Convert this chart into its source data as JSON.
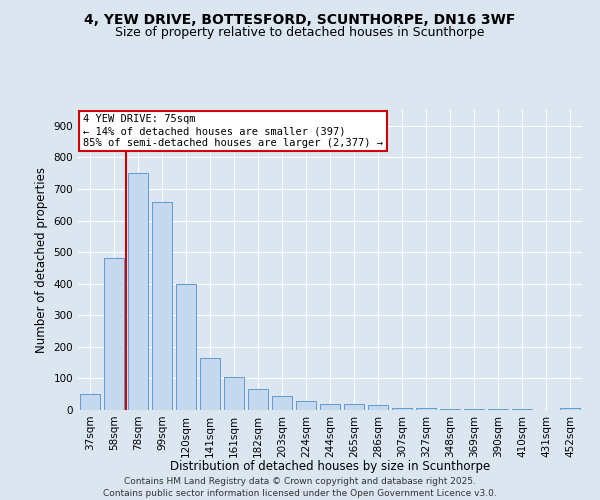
{
  "title1": "4, YEW DRIVE, BOTTESFORD, SCUNTHORPE, DN16 3WF",
  "title2": "Size of property relative to detached houses in Scunthorpe",
  "xlabel": "Distribution of detached houses by size in Scunthorpe",
  "ylabel": "Number of detached properties",
  "footer1": "Contains HM Land Registry data © Crown copyright and database right 2025.",
  "footer2": "Contains public sector information licensed under the Open Government Licence v3.0.",
  "property_label": "4 YEW DRIVE: 75sqm",
  "annotation_line1": "← 14% of detached houses are smaller (397)",
  "annotation_line2": "85% of semi-detached houses are larger (2,377) →",
  "bar_color": "#c5d8ed",
  "bar_edge_color": "#5b9bd5",
  "vline_color": "#cc0000",
  "annotation_box_edge_color": "#cc0000",
  "background_color": "#dce6f1",
  "plot_bg_color": "#dce6f1",
  "categories": [
    "37sqm",
    "58sqm",
    "78sqm",
    "99sqm",
    "120sqm",
    "141sqm",
    "161sqm",
    "182sqm",
    "203sqm",
    "224sqm",
    "244sqm",
    "265sqm",
    "286sqm",
    "307sqm",
    "327sqm",
    "348sqm",
    "369sqm",
    "390sqm",
    "410sqm",
    "431sqm",
    "452sqm"
  ],
  "values": [
    50,
    480,
    750,
    660,
    400,
    165,
    105,
    65,
    45,
    30,
    20,
    18,
    15,
    5,
    5,
    3,
    3,
    2,
    2,
    1,
    5
  ],
  "ylim": [
    0,
    950
  ],
  "yticks": [
    0,
    100,
    200,
    300,
    400,
    500,
    600,
    700,
    800,
    900
  ],
  "title1_fontsize": 10,
  "title2_fontsize": 9,
  "xlabel_fontsize": 8.5,
  "ylabel_fontsize": 8.5,
  "tick_fontsize": 7.5,
  "footer_fontsize": 6.5,
  "ann_fontsize": 7.5
}
